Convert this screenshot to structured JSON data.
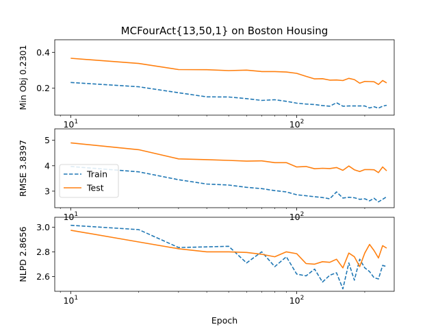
{
  "title": "MCFourAct{13,50,1} on Boston Housing",
  "colors": {
    "train": "#1f77b4",
    "test": "#ff7f0e"
  },
  "chart_data": {
    "type": "line",
    "title": "MCFourAct{13,50,1} on Boston Housing",
    "xlabel": "Epoch",
    "xscale": "log",
    "xlim": [
      8.5,
      270
    ],
    "x_ticks": [
      {
        "value": 10,
        "base": "10",
        "exp": "1"
      },
      {
        "value": 100,
        "base": "10",
        "exp": "2"
      }
    ],
    "legend": {
      "entries": [
        "Train",
        "Test"
      ],
      "placement": "lower-left of middle panel"
    },
    "grid": false,
    "x": [
      10,
      20,
      30,
      40,
      50,
      60,
      70,
      80,
      90,
      100,
      110,
      120,
      130,
      140,
      150,
      160,
      170,
      180,
      190,
      200,
      210,
      220,
      230,
      240,
      250
    ],
    "panels": [
      {
        "name": "min-obj",
        "ylabel": "Min Obj 0.2301",
        "ylim": [
          0.05,
          0.47
        ],
        "y_ticks": [
          {
            "value": 0.2,
            "label": "0.2"
          },
          {
            "value": 0.4,
            "label": "0.4"
          }
        ],
        "series": [
          {
            "name": "Train",
            "style": "dashed",
            "values": [
              0.232,
              0.208,
              0.175,
              0.152,
              0.151,
              0.142,
              0.132,
              0.136,
              0.127,
              0.117,
              0.112,
              0.109,
              0.103,
              0.1,
              0.119,
              0.1,
              0.101,
              0.101,
              0.101,
              0.101,
              0.09,
              0.097,
              0.089,
              0.1,
              0.105
            ]
          },
          {
            "name": "Test",
            "style": "solid",
            "values": [
              0.367,
              0.338,
              0.304,
              0.303,
              0.298,
              0.301,
              0.293,
              0.293,
              0.29,
              0.283,
              0.266,
              0.252,
              0.253,
              0.245,
              0.246,
              0.243,
              0.255,
              0.248,
              0.228,
              0.238,
              0.237,
              0.236,
              0.221,
              0.243,
              0.23
            ]
          }
        ]
      },
      {
        "name": "rmse",
        "ylabel": "RMSE 3.8397",
        "ylim": [
          2.35,
          5.45
        ],
        "y_ticks": [
          {
            "value": 3,
            "label": "3"
          },
          {
            "value": 4,
            "label": "4"
          },
          {
            "value": 5,
            "label": "5"
          }
        ],
        "series": [
          {
            "name": "Train",
            "style": "dashed",
            "values": [
              3.97,
              3.76,
              3.45,
              3.28,
              3.24,
              3.15,
              3.1,
              3.02,
              2.97,
              2.86,
              2.82,
              2.78,
              2.75,
              2.7,
              2.97,
              2.73,
              2.76,
              2.74,
              2.68,
              2.7,
              2.62,
              2.72,
              2.58,
              2.68,
              2.78
            ]
          },
          {
            "name": "Test",
            "style": "solid",
            "values": [
              4.9,
              4.63,
              4.27,
              4.24,
              4.21,
              4.18,
              4.19,
              4.12,
              4.12,
              3.95,
              3.97,
              3.88,
              3.9,
              3.89,
              3.93,
              3.82,
              3.99,
              3.84,
              3.77,
              3.85,
              3.85,
              3.84,
              3.73,
              3.95,
              3.8
            ]
          }
        ]
      },
      {
        "name": "nlpd",
        "ylabel": "NLPD 2.8656",
        "ylim": [
          2.48,
          3.08
        ],
        "y_ticks": [
          {
            "value": 2.6,
            "label": "2.6"
          },
          {
            "value": 2.8,
            "label": "2.8"
          },
          {
            "value": 3.0,
            "label": "3.0"
          }
        ],
        "series": [
          {
            "name": "Train",
            "style": "dashed",
            "values": [
              3.015,
              2.98,
              2.835,
              2.84,
              2.845,
              2.71,
              2.8,
              2.68,
              2.76,
              2.62,
              2.605,
              2.66,
              2.555,
              2.61,
              2.63,
              2.5,
              2.71,
              2.57,
              2.74,
              2.67,
              2.64,
              2.59,
              2.58,
              2.69,
              2.68
            ]
          },
          {
            "name": "Test",
            "style": "solid",
            "values": [
              2.975,
              2.88,
              2.825,
              2.8,
              2.8,
              2.795,
              2.78,
              2.76,
              2.8,
              2.785,
              2.705,
              2.7,
              2.72,
              2.715,
              2.74,
              2.67,
              2.79,
              2.76,
              2.68,
              2.79,
              2.86,
              2.81,
              2.75,
              2.85,
              2.83
            ]
          }
        ]
      }
    ]
  }
}
